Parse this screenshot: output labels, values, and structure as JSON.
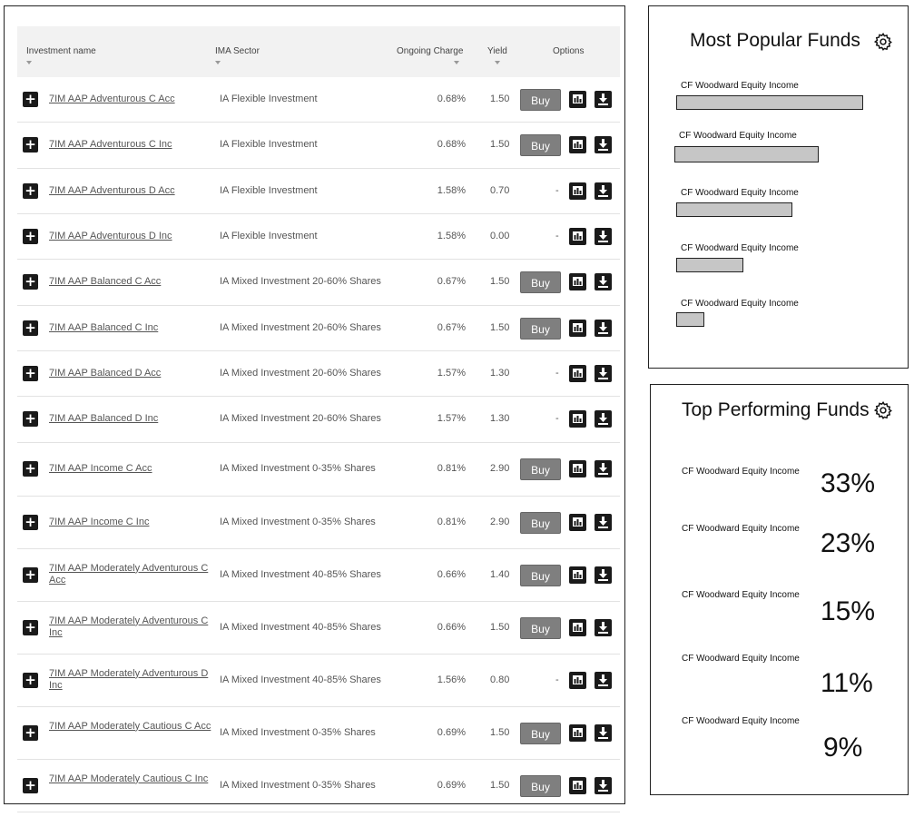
{
  "table": {
    "headers": {
      "name": "Investment name",
      "sector": "IMA Sector",
      "charge": "Ongoing Charge",
      "yield": "Yield",
      "options": "Options"
    },
    "rows": [
      {
        "name": "7IM AAP Adventurous C Acc",
        "sector": "IA Flexible Investment",
        "charge": "0.68%",
        "yield": "1.50",
        "buy": "Buy"
      },
      {
        "name": "7IM AAP Adventurous C Inc",
        "sector": "IA Flexible Investment",
        "charge": "0.68%",
        "yield": "1.50",
        "buy": "Buy"
      },
      {
        "name": "7IM AAP Adventurous D Acc",
        "sector": "IA Flexible Investment",
        "charge": "1.58%",
        "yield": "0.70",
        "buy": "-"
      },
      {
        "name": "7IM AAP Adventurous D Inc",
        "sector": "IA Flexible Investment",
        "charge": "1.58%",
        "yield": "0.00",
        "buy": "-"
      },
      {
        "name": "7IM AAP Balanced C Acc",
        "sector": "IA Mixed Investment 20-60% Shares",
        "charge": "0.67%",
        "yield": "1.50",
        "buy": "Buy"
      },
      {
        "name": "7IM AAP Balanced C Inc",
        "sector": "IA Mixed Investment 20-60% Shares",
        "charge": "0.67%",
        "yield": "1.50",
        "buy": "Buy"
      },
      {
        "name": "7IM AAP Balanced D Acc",
        "sector": "IA Mixed Investment 20-60% Shares",
        "charge": "1.57%",
        "yield": "1.30",
        "buy": "-"
      },
      {
        "name": "7IM AAP Balanced D Inc",
        "sector": "IA Mixed Investment 20-60% Shares",
        "charge": "1.57%",
        "yield": "1.30",
        "buy": "-"
      },
      {
        "name": "7IM AAP Income C Acc",
        "sector": "IA Mixed Investment 0-35% Shares",
        "charge": "0.81%",
        "yield": "2.90",
        "buy": "Buy"
      },
      {
        "name": "7IM AAP Income C Inc",
        "sector": "IA Mixed Investment 0-35% Shares",
        "charge": "0.81%",
        "yield": "2.90",
        "buy": "Buy"
      },
      {
        "name": "7IM AAP Moderately Adventurous C Acc",
        "sector": "IA Mixed Investment 40-85% Shares",
        "charge": "0.66%",
        "yield": "1.40",
        "buy": "Buy"
      },
      {
        "name": "7IM AAP Moderately Adventurous C Inc",
        "sector": "IA Mixed Investment 40-85% Shares",
        "charge": "0.66%",
        "yield": "1.50",
        "buy": "Buy"
      },
      {
        "name": "7IM AAP Moderately Adventurous D Inc",
        "sector": "IA Mixed Investment 40-85% Shares",
        "charge": "1.56%",
        "yield": "0.80",
        "buy": "-"
      },
      {
        "name": "7IM AAP Moderately Cautious C Acc",
        "sector": "IA Mixed Investment 0-35% Shares",
        "charge": "0.69%",
        "yield": "1.50",
        "buy": "Buy"
      },
      {
        "name": "7IM AAP Moderately Cautious C Inc",
        "sector": "IA Mixed Investment 0-35% Shares",
        "charge": "0.69%",
        "yield": "1.50",
        "buy": "Buy"
      }
    ]
  },
  "most_popular": {
    "title": "Most Popular Funds",
    "items": [
      {
        "label": "CF Woodward Equity Income",
        "bar_fraction": 1.0
      },
      {
        "label": "CF Woodward Equity Income",
        "bar_fraction": 0.77
      },
      {
        "label": "CF Woodward Equity Income",
        "bar_fraction": 0.62
      },
      {
        "label": "CF Woodward Equity Income",
        "bar_fraction": 0.36
      },
      {
        "label": "CF Woodward Equity Income",
        "bar_fraction": 0.15
      }
    ]
  },
  "top_performing": {
    "title": "Top Performing Funds",
    "items": [
      {
        "label": "CF Woodward Equity Income",
        "value": "33%"
      },
      {
        "label": "CF Woodward Equity Income",
        "value": "23%"
      },
      {
        "label": "CF Woodward Equity Income",
        "value": "15%"
      },
      {
        "label": "CF Woodward Equity Income",
        "value": "11%"
      },
      {
        "label": "CF Woodward Equity Income",
        "value": "9%"
      }
    ]
  },
  "icons": {
    "expand": "plus-icon",
    "chart": "chart-icon",
    "download": "download-icon",
    "settings": "gear-icon"
  }
}
